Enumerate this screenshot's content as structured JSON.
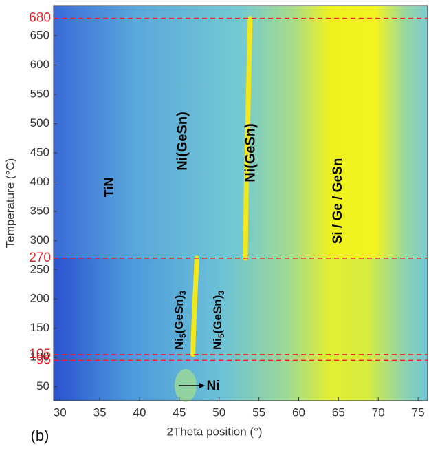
{
  "chart_data": {
    "type": "heatmap",
    "x_label": "2Theta position (°)",
    "y_label": "Temperature (°C)",
    "xlim": [
      29.2,
      76.2
    ],
    "xticks": [
      30,
      35,
      40,
      45,
      50,
      55,
      60,
      65,
      70,
      75
    ],
    "ylim": [
      26,
      702
    ],
    "yticks": [
      50,
      100,
      150,
      200,
      250,
      300,
      350,
      400,
      450,
      500,
      550,
      600,
      650
    ],
    "hlines": {
      "values": [
        680,
        270,
        105,
        95
      ],
      "color": "#e8202a"
    },
    "series": [
      {
        "name": "Ni(GeSn)",
        "color": "#f2e81c",
        "x": [
          53.3,
          53.4,
          53.6,
          53.8,
          53.9
        ],
        "y": [
          270,
          380,
          500,
          620,
          680
        ]
      },
      {
        "name": "Ni5(GeSn)3",
        "color": "#f2e81c",
        "x": [
          46.7,
          46.8,
          47.0,
          47.2
        ],
        "y": [
          105,
          150,
          210,
          270
        ]
      }
    ],
    "annotations": [
      "TiN",
      "Ni(GeSn)",
      "Ni(GeSn)",
      "Si / Ge / GeSn",
      "Ni5(GeSn)3",
      "Ni5(GeSn)3",
      "Ni"
    ],
    "panel_label": "(b)"
  }
}
